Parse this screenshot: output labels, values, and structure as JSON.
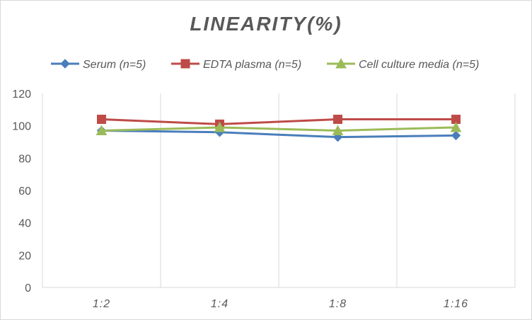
{
  "chart_data": {
    "type": "line",
    "title": "LINEARITY(%)",
    "categories": [
      "1:2",
      "1:4",
      "1:8",
      "1:16"
    ],
    "ylim": [
      0,
      120
    ],
    "yticks": [
      0,
      20,
      40,
      60,
      80,
      100,
      120
    ],
    "grid": "vertical",
    "legend": "top",
    "series": [
      {
        "name": "Serum (n=5)",
        "values": [
          97,
          96,
          93,
          94
        ],
        "color": "#4a7ebb",
        "marker": "diamond"
      },
      {
        "name": "EDTA plasma (n=5)",
        "values": [
          104,
          101,
          104,
          104
        ],
        "color": "#be4b48",
        "marker": "square"
      },
      {
        "name": "Cell culture media (n=5)",
        "values": [
          97,
          99,
          97,
          99
        ],
        "color": "#9bbb59",
        "marker": "triangle"
      }
    ]
  }
}
